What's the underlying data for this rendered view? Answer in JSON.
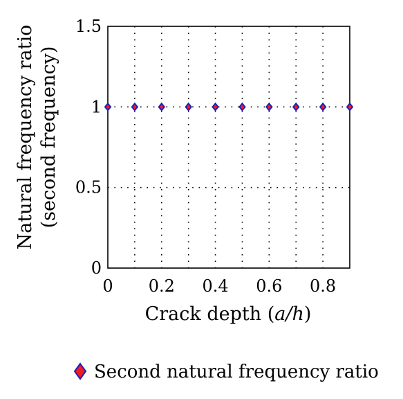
{
  "chart_data": {
    "type": "scatter",
    "xlabel_prefix": "Crack depth (",
    "xlabel_var": "a/h",
    "xlabel_suffix": ")",
    "ylabel_line1": "Natural frequency ratio",
    "ylabel_line2": "(second frequency)",
    "xlim": [
      0,
      0.9
    ],
    "ylim": [
      0,
      1.5
    ],
    "x_ticks": [
      0,
      0.2,
      0.4,
      0.6,
      0.8
    ],
    "x_tick_labels": [
      "0",
      "0.2",
      "0.4",
      "0.6",
      "0.8"
    ],
    "y_ticks": [
      0,
      0.5,
      1,
      1.5
    ],
    "y_tick_labels": [
      "0",
      "0.5",
      "1",
      "1.5"
    ],
    "x_grid": [
      0.1,
      0.2,
      0.3,
      0.4,
      0.5,
      0.6,
      0.7,
      0.8
    ],
    "y_grid": [
      0.5,
      1
    ],
    "grid": true,
    "legend_position": "bottom",
    "series": [
      {
        "name": "Second natural frequency ratio",
        "marker": "diamond",
        "fill_color": "#ee1c24",
        "edge_color": "#1f1fb4",
        "x": [
          0,
          0.1,
          0.2,
          0.3,
          0.4,
          0.5,
          0.6,
          0.7,
          0.8,
          0.9
        ],
        "y": [
          1,
          1,
          1,
          1,
          1,
          1,
          1,
          1,
          1,
          1
        ]
      }
    ]
  }
}
